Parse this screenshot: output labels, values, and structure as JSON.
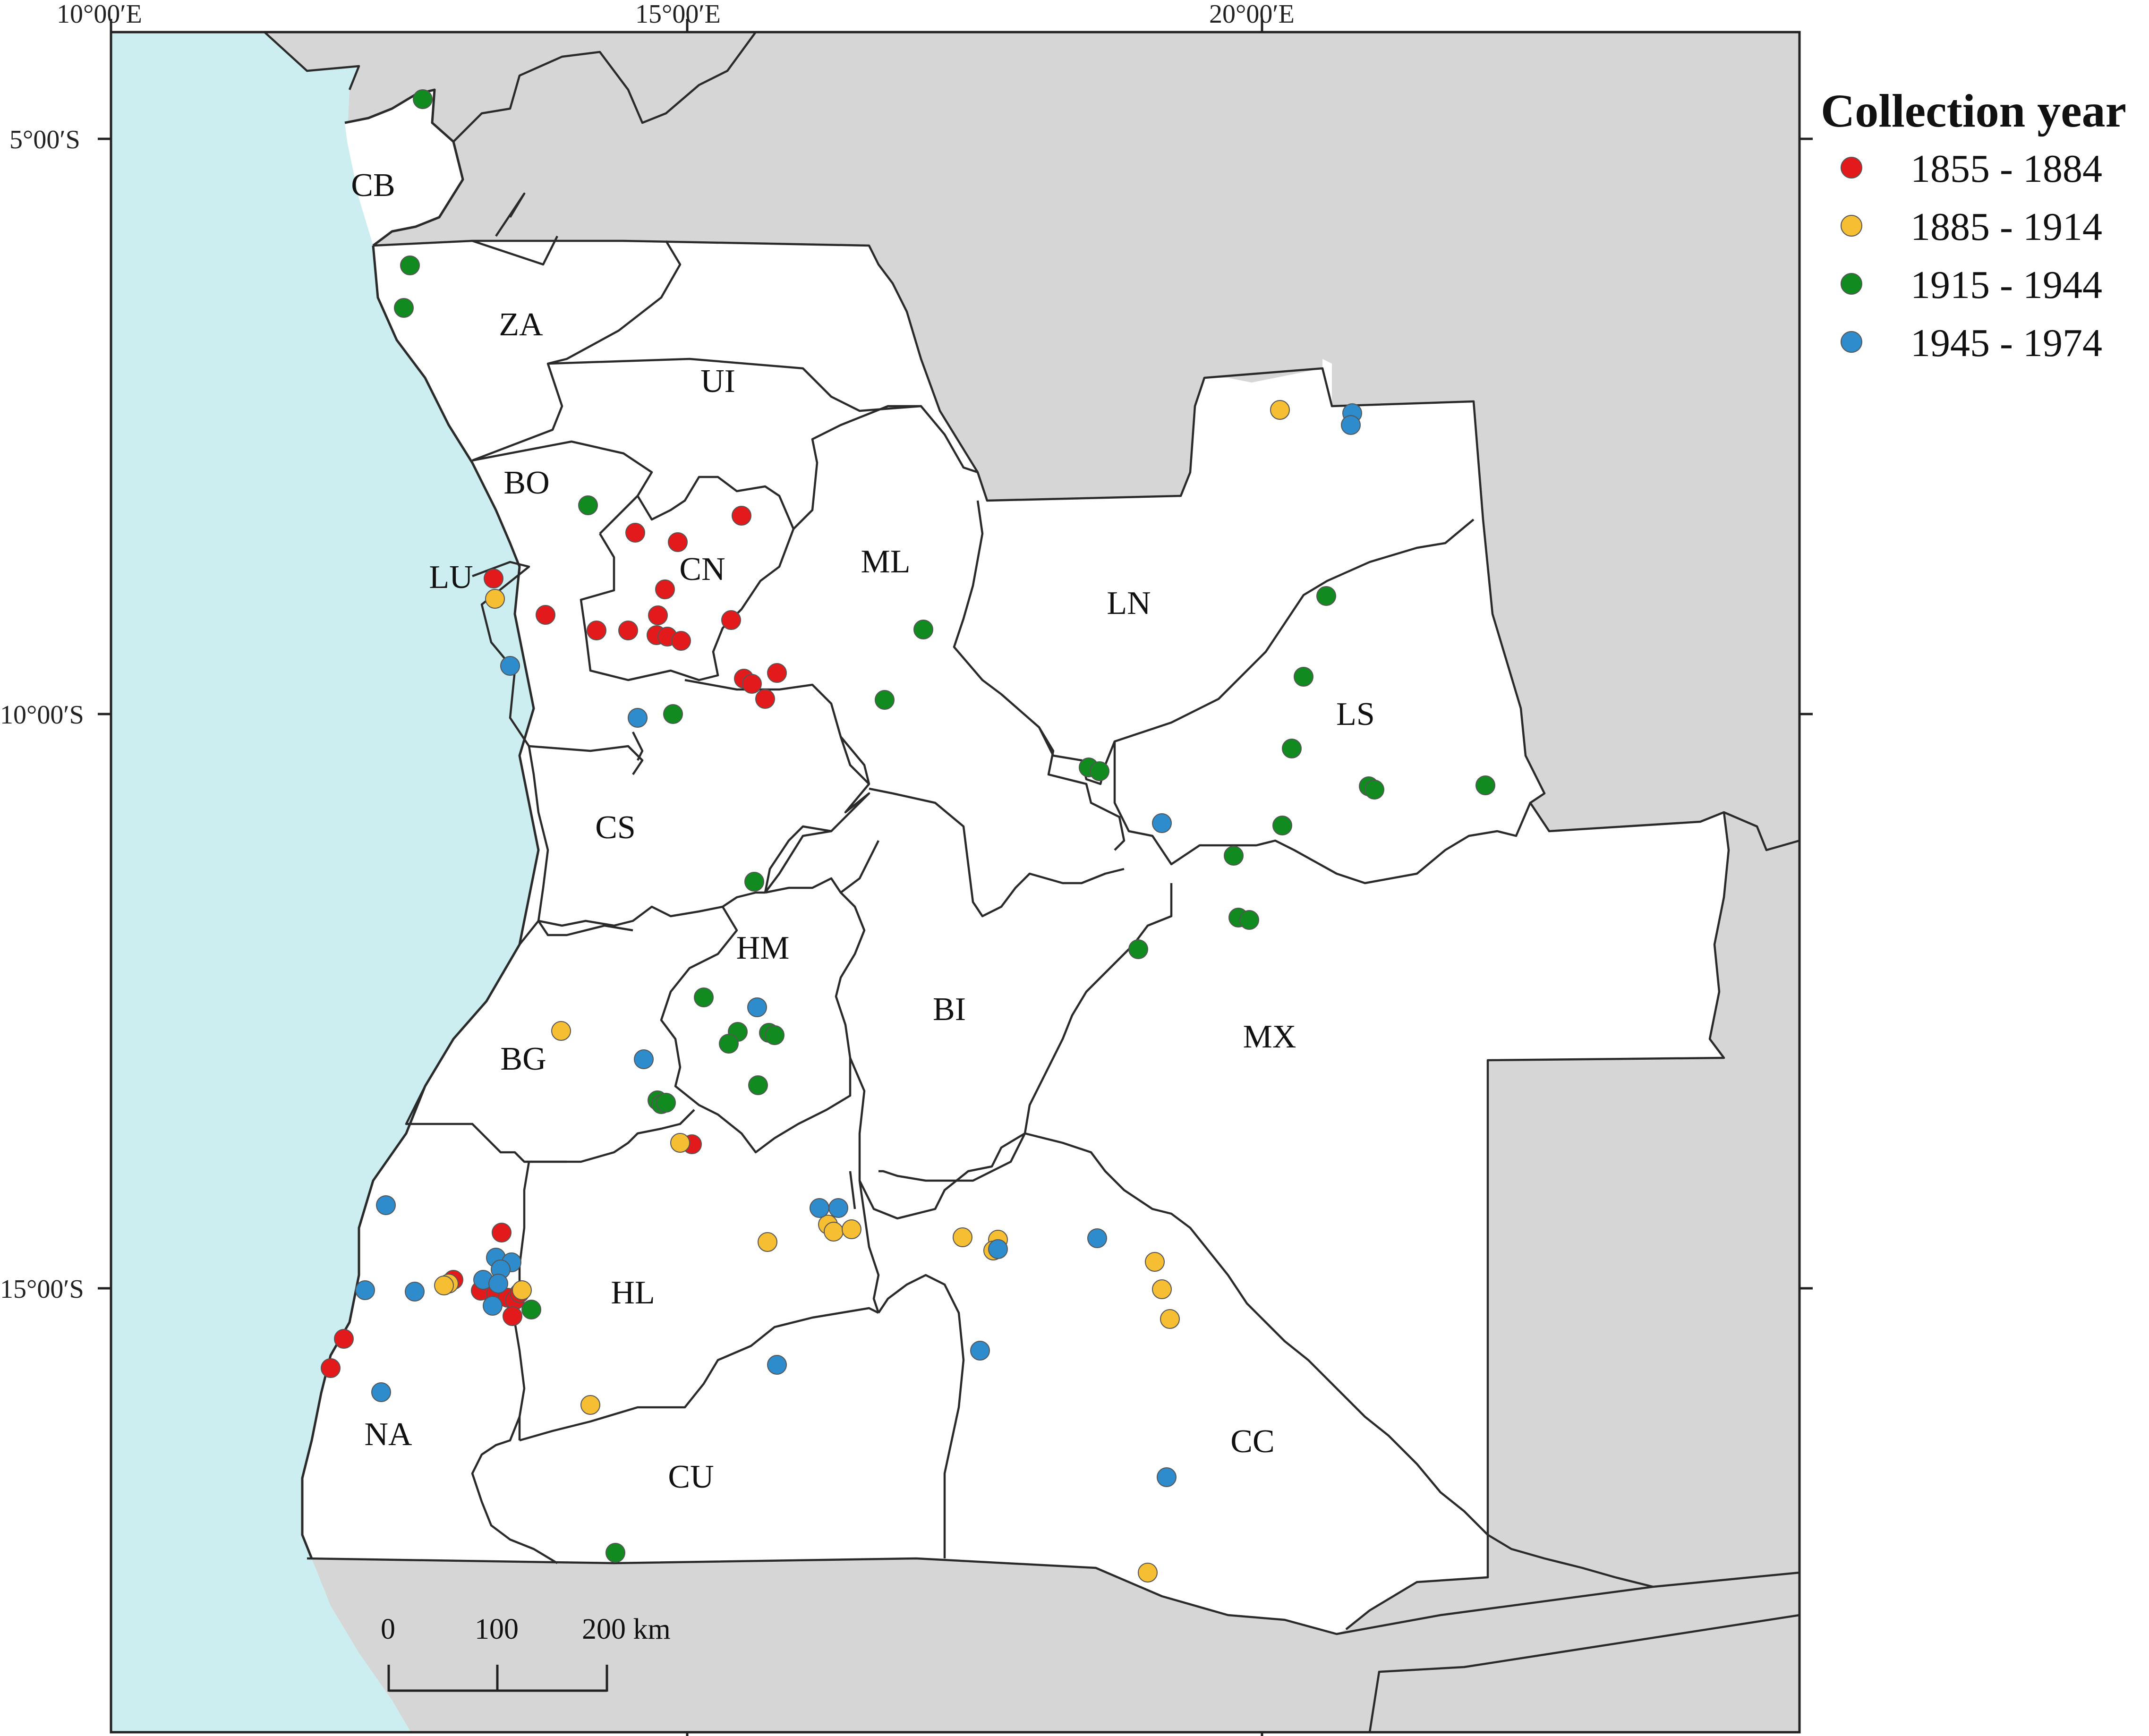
{
  "map": {
    "axis": {
      "longitude_labels": [
        "10°00′E",
        "15°00′E",
        "20°00′E"
      ],
      "latitude_labels": [
        "5°00′S",
        "10°00′S",
        "15°00′S"
      ]
    },
    "colors": {
      "sea": "#cdeef0",
      "land_outside": "#d6d6d6",
      "land_inside": "#ffffff"
    },
    "regions": [
      "CB",
      "ZA",
      "UI",
      "BO",
      "LU",
      "CN",
      "ML",
      "LN",
      "LS",
      "CS",
      "HM",
      "BI",
      "BG",
      "MX",
      "HL",
      "NA",
      "CU",
      "CC"
    ],
    "legend": {
      "title": "Collection year",
      "items": [
        {
          "label": "1855 - 1884",
          "color": "#e31a1c"
        },
        {
          "label": "1885 - 1914",
          "color": "#f6be33"
        },
        {
          "label": "1915 - 1944",
          "color": "#118a1f"
        },
        {
          "label": "1945 - 1974",
          "color": "#2f8ccc"
        }
      ]
    },
    "scale_bar": {
      "labels": [
        "0",
        "100",
        "200 km"
      ]
    }
  }
}
